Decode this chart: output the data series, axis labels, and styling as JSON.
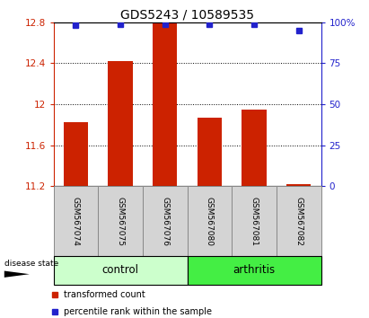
{
  "title": "GDS5243 / 10589535",
  "samples": [
    "GSM567074",
    "GSM567075",
    "GSM567076",
    "GSM567080",
    "GSM567081",
    "GSM567082"
  ],
  "bar_values": [
    11.82,
    12.42,
    12.79,
    11.87,
    11.95,
    11.22
  ],
  "percentile_values": [
    98,
    99,
    99,
    99,
    99,
    95
  ],
  "bar_color": "#cc2200",
  "dot_color": "#2222cc",
  "ylim_left": [
    11.2,
    12.8
  ],
  "ylim_right": [
    0,
    100
  ],
  "yticks_left": [
    11.2,
    11.6,
    12.0,
    12.4,
    12.8
  ],
  "yticks_right": [
    0,
    25,
    50,
    75,
    100
  ],
  "ytick_labels_left": [
    "11.2",
    "11.6",
    "12",
    "12.4",
    "12.8"
  ],
  "ytick_labels_right": [
    "0",
    "25",
    "50",
    "75",
    "100%"
  ],
  "grid_lines": [
    11.6,
    12.0,
    12.4
  ],
  "control_color": "#ccffcc",
  "arthritis_color": "#44ee44",
  "disease_label": "disease state",
  "legend_items": [
    {
      "label": "transformed count",
      "color": "#cc2200"
    },
    {
      "label": "percentile rank within the sample",
      "color": "#2222cc"
    }
  ],
  "bar_width": 0.55,
  "background_color": "#ffffff"
}
